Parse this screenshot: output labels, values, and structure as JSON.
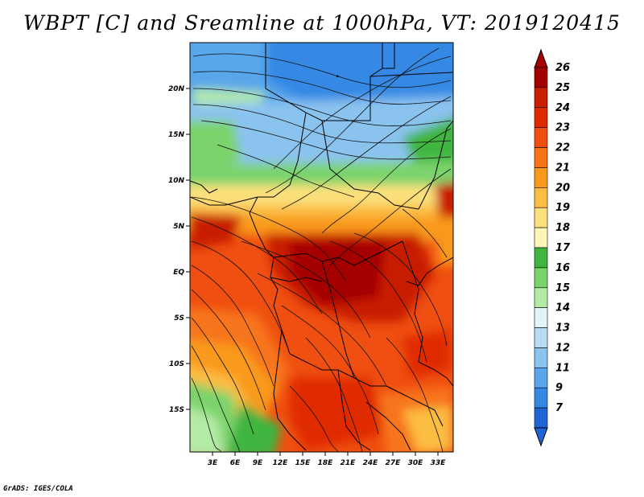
{
  "title": "WBPT [C] and Sreamline at 1000hPa, VT: 2019120415",
  "credit": "GrADS: IGES/COLA",
  "lat_ticks": [
    "20N",
    "15N",
    "10N",
    "5N",
    "EQ",
    "5S",
    "10S",
    "15S"
  ],
  "lon_ticks": [
    "3E",
    "6E",
    "9E",
    "12E",
    "15E",
    "18E",
    "21E",
    "24E",
    "27E",
    "30E",
    "33E"
  ],
  "colorbar": {
    "labels": [
      "26",
      "25",
      "24",
      "23",
      "22",
      "21",
      "20",
      "19",
      "18",
      "17",
      "16",
      "15",
      "14",
      "13",
      "12",
      "11",
      "9",
      "7"
    ],
    "colors": [
      "#a50000",
      "#c81e00",
      "#e02a00",
      "#ef4f10",
      "#f7741a",
      "#f99a1c",
      "#fbbd43",
      "#fde07c",
      "#fdf6b8",
      "#3fb53f",
      "#7bd36c",
      "#b3eaa6",
      "#e2f5f7",
      "#b9ddf4",
      "#8bc3ef",
      "#5aa6ea",
      "#3589e4",
      "#2065d7"
    ],
    "top_color": "#a50000",
    "bottom_color": "#2065d7"
  }
}
